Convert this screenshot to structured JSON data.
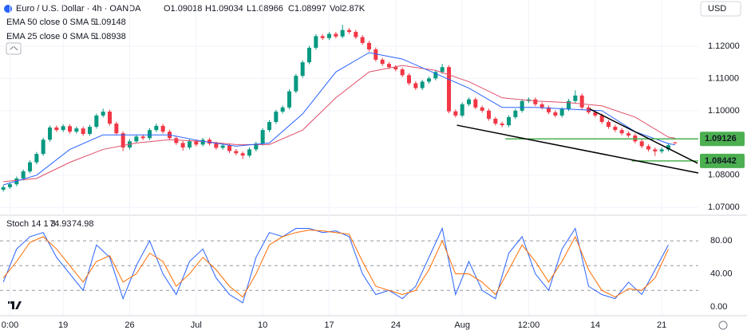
{
  "chart_data": [
    {
      "type": "candlestick",
      "title": "Euro / U.S. Dollar · 4h · OANDA",
      "ohlc_labels": [
        "O1.09018",
        "H1.09034",
        "L1.08966",
        "C1.08997",
        "Vol2.87K"
      ],
      "currency": "USD",
      "xlim": [
        -0.5,
        104.5
      ],
      "xticks": [
        {
          "value": 1,
          "label": "0:00"
        },
        {
          "value": 9,
          "label": "19"
        },
        {
          "value": 19,
          "label": "26"
        },
        {
          "value": 29,
          "label": "Jul"
        },
        {
          "value": 39,
          "label": "10"
        },
        {
          "value": 49,
          "label": "17"
        },
        {
          "value": 59,
          "label": "24"
        },
        {
          "value": 69,
          "label": "Aug"
        },
        {
          "value": 79,
          "label": "12:00"
        },
        {
          "value": 89,
          "label": "14"
        },
        {
          "value": 99,
          "label": "21"
        }
      ],
      "ylim": [
        1.0681,
        1.1343
      ],
      "yticks": [
        {
          "value": 1.12,
          "label": "1.12000"
        },
        {
          "value": 1.11,
          "label": "1.11000"
        },
        {
          "value": 1.1,
          "label": "1.10000"
        },
        {
          "value": 1.08,
          "label": "1.08000"
        },
        {
          "value": 1.07,
          "label": "1.07000"
        }
      ],
      "up_color": "#089981",
      "down_color": "#f23645",
      "open": [
        1.0755,
        1.0763,
        1.0772,
        1.079,
        1.0812,
        1.084,
        1.0866,
        1.091,
        1.0948,
        1.094,
        1.0952,
        1.0935,
        1.0945,
        1.0928,
        1.095,
        1.0985,
        1.0997,
        1.096,
        1.093,
        1.0886,
        1.0905,
        1.092,
        1.0915,
        1.094,
        1.0953,
        1.0935,
        1.0915,
        1.09,
        1.0886,
        1.0905,
        1.0895,
        1.091,
        1.0898,
        1.0885,
        1.0892,
        1.0875,
        1.0868,
        1.0861,
        1.088,
        1.0898,
        1.094,
        1.0965,
        1.0997,
        1.101,
        1.106,
        1.1108,
        1.115,
        1.1195,
        1.1231,
        1.1225,
        1.1238,
        1.123,
        1.125,
        1.1244,
        1.1228,
        1.121,
        1.119,
        1.1158,
        1.1145,
        1.1135,
        1.1128,
        1.111,
        1.1085,
        1.107,
        1.109,
        1.11,
        1.112,
        1.1135,
        1.0998,
        1.0985,
        1.102,
        1.1035,
        1.101,
        1.1,
        1.0975,
        1.096,
        1.0955,
        1.098,
        1.1,
        1.103,
        1.1035,
        1.102,
        1.101,
        1.0995,
        1.0985,
        1.1005,
        1.103,
        1.1047,
        1.101,
        1.0995,
        1.0985,
        1.0965,
        1.095,
        1.094,
        1.093,
        1.0923,
        1.0905,
        1.089,
        1.088,
        1.0874,
        1.088,
        1.09018
      ],
      "high": [
        1.0769,
        1.0778,
        1.0796,
        1.0818,
        1.0846,
        1.0872,
        1.0916,
        1.0954,
        1.0954,
        1.0958,
        1.0958,
        1.0951,
        1.0951,
        1.0956,
        1.0991,
        1.1006,
        1.1003,
        1.0966,
        1.0936,
        1.0911,
        1.0926,
        1.0926,
        1.0946,
        1.096,
        1.0959,
        1.0941,
        1.0921,
        1.0906,
        1.0911,
        1.0911,
        1.0916,
        1.0916,
        1.0904,
        1.0898,
        1.0898,
        1.0881,
        1.0874,
        1.0886,
        1.0904,
        1.0946,
        1.0971,
        1.1003,
        1.1016,
        1.1066,
        1.1114,
        1.1156,
        1.1201,
        1.1237,
        1.1237,
        1.1244,
        1.1244,
        1.1266,
        1.1256,
        1.125,
        1.1234,
        1.1216,
        1.1196,
        1.1164,
        1.1151,
        1.1141,
        1.1134,
        1.1116,
        1.1091,
        1.1096,
        1.1106,
        1.1126,
        1.1145,
        1.1141,
        1.1004,
        1.1026,
        1.1041,
        1.1041,
        1.1016,
        1.1006,
        1.0981,
        1.0966,
        1.0986,
        1.1006,
        1.1036,
        1.1041,
        1.1041,
        1.1026,
        1.1016,
        1.1001,
        1.1011,
        1.1036,
        1.1063,
        1.1053,
        1.1016,
        1.1001,
        1.0991,
        1.0971,
        1.0956,
        1.0946,
        1.0936,
        1.0929,
        1.0911,
        1.0896,
        1.0886,
        1.0886,
        1.0899,
        1.09034
      ],
      "low": [
        1.0749,
        1.0757,
        1.0766,
        1.0784,
        1.0806,
        1.0834,
        1.086,
        1.0904,
        1.0934,
        1.0934,
        1.0929,
        1.0929,
        1.0922,
        1.0922,
        1.0944,
        1.0979,
        1.0954,
        1.0924,
        1.0875,
        1.088,
        1.0899,
        1.0909,
        1.0909,
        1.0934,
        1.0929,
        1.0909,
        1.0894,
        1.0876,
        1.088,
        1.0889,
        1.0889,
        1.0892,
        1.0879,
        1.0879,
        1.0869,
        1.0862,
        1.085,
        1.0855,
        1.0874,
        1.0892,
        1.0934,
        1.0959,
        1.0991,
        1.1004,
        1.1054,
        1.1102,
        1.1144,
        1.1189,
        1.1219,
        1.1219,
        1.1224,
        1.1224,
        1.1238,
        1.1222,
        1.1204,
        1.1184,
        1.1152,
        1.1139,
        1.1129,
        1.1122,
        1.1104,
        1.1079,
        1.1064,
        1.1064,
        1.1084,
        1.1094,
        1.1114,
        1.0992,
        1.0979,
        1.0979,
        1.1014,
        1.1004,
        1.0994,
        1.0969,
        1.0954,
        1.0949,
        1.0949,
        1.0974,
        1.0994,
        1.1024,
        1.1014,
        1.1004,
        1.0989,
        1.0979,
        1.0979,
        1.0999,
        1.1024,
        1.1004,
        1.0989,
        1.0979,
        1.0959,
        1.0944,
        1.0934,
        1.0924,
        1.0917,
        1.0899,
        1.0884,
        1.0874,
        1.086,
        1.0868,
        1.0874,
        1.08966
      ],
      "close": [
        1.0763,
        1.0772,
        1.079,
        1.0812,
        1.084,
        1.0866,
        1.091,
        1.0948,
        1.094,
        1.0952,
        1.0935,
        1.0945,
        1.0928,
        1.095,
        1.0985,
        1.0997,
        1.096,
        1.093,
        1.0886,
        1.0905,
        1.092,
        1.0915,
        1.094,
        1.0953,
        1.0935,
        1.0915,
        1.09,
        1.0886,
        1.0905,
        1.0895,
        1.091,
        1.0898,
        1.0885,
        1.0892,
        1.0875,
        1.0868,
        1.0861,
        1.088,
        1.0898,
        1.094,
        1.0965,
        1.0997,
        1.101,
        1.106,
        1.1108,
        1.115,
        1.1195,
        1.1231,
        1.1225,
        1.1238,
        1.123,
        1.125,
        1.1244,
        1.1228,
        1.121,
        1.119,
        1.1158,
        1.1145,
        1.1135,
        1.1128,
        1.111,
        1.1085,
        1.107,
        1.109,
        1.11,
        1.112,
        1.1135,
        1.0998,
        1.0985,
        1.102,
        1.1035,
        1.101,
        1.1,
        1.0975,
        1.096,
        1.0955,
        1.098,
        1.1,
        1.103,
        1.1035,
        1.102,
        1.101,
        1.0995,
        1.0985,
        1.1005,
        1.103,
        1.1047,
        1.101,
        1.0995,
        1.0985,
        1.0965,
        1.095,
        1.094,
        1.093,
        1.0923,
        1.0905,
        1.089,
        1.088,
        1.0874,
        1.088,
        1.0893,
        1.08997
      ],
      "series": [
        {
          "name": "EMA 50 close 0 SMA 5",
          "last": 1.09148,
          "color": "#e0506a",
          "x": [
            0,
            5,
            10,
            15,
            20,
            25,
            30,
            35,
            40,
            45,
            50,
            55,
            60,
            65,
            70,
            75,
            80,
            85,
            90,
            95,
            100,
            101
          ],
          "values": [
            1.078,
            1.079,
            1.084,
            1.088,
            1.09,
            1.091,
            1.0905,
            1.0895,
            1.0895,
            1.094,
            1.104,
            1.112,
            1.114,
            1.1125,
            1.109,
            1.104,
            1.103,
            1.1025,
            1.1015,
            1.098,
            1.0918,
            1.0915
          ]
        },
        {
          "name": "EMA 25 close 0 SMA 5",
          "last": 1.08938,
          "color": "#2962ff",
          "x": [
            0,
            5,
            10,
            15,
            20,
            25,
            30,
            35,
            40,
            45,
            50,
            55,
            60,
            65,
            70,
            75,
            80,
            85,
            90,
            95,
            100,
            101
          ],
          "values": [
            1.077,
            1.08,
            1.088,
            1.0925,
            1.0925,
            1.0925,
            1.0905,
            1.089,
            1.09,
            1.099,
            1.112,
            1.118,
            1.116,
            1.1115,
            1.107,
            1.101,
            1.101,
            1.1005,
            1.1,
            1.0935,
            1.0898,
            1.0894
          ]
        }
      ],
      "hlines": [
        {
          "value": 1.09126,
          "start": 75.5,
          "color": "#4caf50"
        },
        {
          "value": 1.08442,
          "start": 94.5,
          "color": "#4caf50"
        }
      ],
      "trendlines": [
        {
          "x": [
            68.2,
            104.5
          ],
          "y": [
            1.0955,
            1.0807
          ],
          "color": "#000000"
        },
        {
          "x": [
            88.2,
            104.4
          ],
          "y": [
            1.1005,
            1.0837
          ],
          "color": "#000000"
        }
      ]
    },
    {
      "type": "line",
      "title": "Stoch 14 1 3",
      "xlim": [
        -0.5,
        104.5
      ],
      "ylim": [
        -9.6,
        109
      ],
      "yticks": [
        {
          "value": 80,
          "label": "80.00"
        },
        {
          "value": 40,
          "label": "40.00"
        },
        {
          "value": 0,
          "label": "0.00"
        }
      ],
      "bands": [
        80,
        50,
        20
      ],
      "x": [
        0,
        2,
        4,
        6,
        8,
        10,
        12,
        14,
        16,
        18,
        20,
        22,
        24,
        26,
        28,
        30,
        32,
        34,
        36,
        38,
        40,
        42,
        44,
        46,
        48,
        50,
        52,
        54,
        56,
        58,
        60,
        62,
        64,
        66,
        68,
        70,
        72,
        74,
        76,
        78,
        80,
        82,
        84,
        86,
        88,
        90,
        92,
        94,
        96,
        98,
        100
      ],
      "series": [
        {
          "last": 74.93,
          "color": "#2962ff",
          "values": [
            30,
            70,
            85,
            90,
            60,
            40,
            20,
            75,
            60,
            10,
            50,
            80,
            40,
            15,
            55,
            70,
            35,
            15,
            5,
            60,
            90,
            85,
            95,
            95,
            90,
            92,
            85,
            40,
            15,
            20,
            10,
            25,
            60,
            95,
            15,
            55,
            20,
            10,
            65,
            85,
            40,
            20,
            70,
            95,
            25,
            15,
            10,
            30,
            15,
            45,
            75
          ]
        },
        {
          "last": 74.98,
          "color": "#ff6d00",
          "values": [
            35,
            55,
            78,
            85,
            70,
            50,
            30,
            55,
            62,
            30,
            40,
            65,
            55,
            25,
            40,
            60,
            45,
            25,
            12,
            40,
            75,
            85,
            90,
            93,
            92,
            90,
            88,
            55,
            25,
            20,
            15,
            20,
            45,
            80,
            40,
            40,
            30,
            15,
            45,
            75,
            55,
            30,
            55,
            85,
            45,
            20,
            12,
            22,
            20,
            35,
            70
          ]
        }
      ]
    }
  ]
}
